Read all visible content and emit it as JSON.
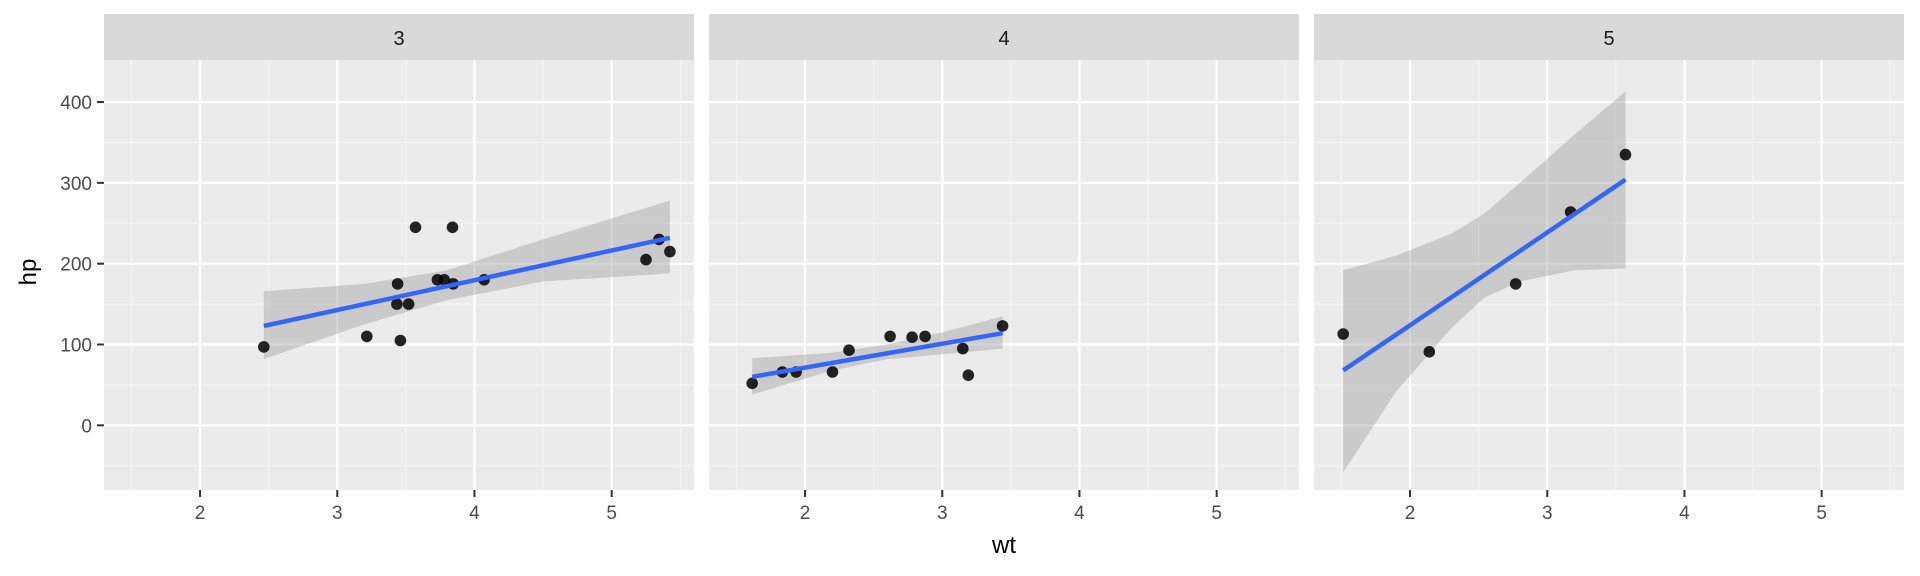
{
  "chart_data": {
    "type": "scatter",
    "facet_by": "gear",
    "xlabel": "wt",
    "ylabel": "hp",
    "x_ticks": [
      2,
      3,
      4,
      5
    ],
    "y_ticks": [
      0,
      100,
      200,
      300,
      400
    ],
    "xlim": [
      1.3,
      5.6
    ],
    "ylim": [
      -80,
      452
    ],
    "grid": true,
    "panels": [
      {
        "label": "3",
        "points": [
          {
            "x": 2.465,
            "y": 97
          },
          {
            "x": 3.215,
            "y": 110
          },
          {
            "x": 3.44,
            "y": 175
          },
          {
            "x": 3.46,
            "y": 105
          },
          {
            "x": 3.57,
            "y": 245
          },
          {
            "x": 3.435,
            "y": 150
          },
          {
            "x": 3.52,
            "y": 150
          },
          {
            "x": 3.84,
            "y": 245
          },
          {
            "x": 3.845,
            "y": 175
          },
          {
            "x": 4.07,
            "y": 180
          },
          {
            "x": 3.73,
            "y": 180
          },
          {
            "x": 3.78,
            "y": 180
          },
          {
            "x": 5.25,
            "y": 205
          },
          {
            "x": 5.345,
            "y": 230
          },
          {
            "x": 5.424,
            "y": 215
          }
        ],
        "fit": {
          "x": [
            2.465,
            5.424
          ],
          "y": [
            123,
            232
          ]
        },
        "band": {
          "x": [
            2.465,
            3.2,
            3.8,
            4.5,
            5.424
          ],
          "lower": [
            82,
            125,
            155,
            178,
            188
          ],
          "upper": [
            166,
            175,
            192,
            230,
            278
          ]
        }
      },
      {
        "label": "4",
        "points": [
          {
            "x": 1.615,
            "y": 52
          },
          {
            "x": 1.835,
            "y": 66
          },
          {
            "x": 1.935,
            "y": 66
          },
          {
            "x": 2.2,
            "y": 66
          },
          {
            "x": 2.32,
            "y": 93
          },
          {
            "x": 2.62,
            "y": 110
          },
          {
            "x": 2.78,
            "y": 109
          },
          {
            "x": 2.875,
            "y": 110
          },
          {
            "x": 3.15,
            "y": 95
          },
          {
            "x": 3.19,
            "y": 62
          },
          {
            "x": 3.44,
            "y": 123
          }
        ],
        "fit": {
          "x": [
            1.615,
            3.44
          ],
          "y": [
            60,
            114
          ]
        },
        "band": {
          "x": [
            1.615,
            2.2,
            2.6,
            3.0,
            3.44
          ],
          "lower": [
            38,
            68,
            82,
            88,
            95
          ],
          "upper": [
            83,
            90,
            100,
            115,
            135
          ]
        }
      },
      {
        "label": "5",
        "points": [
          {
            "x": 1.513,
            "y": 113
          },
          {
            "x": 2.14,
            "y": 91
          },
          {
            "x": 2.77,
            "y": 175
          },
          {
            "x": 3.17,
            "y": 264
          },
          {
            "x": 3.57,
            "y": 335
          }
        ],
        "fit": {
          "x": [
            1.513,
            3.57
          ],
          "y": [
            68,
            304
          ]
        },
        "band": {
          "x": [
            1.513,
            1.9,
            2.3,
            2.541,
            2.8,
            3.2,
            3.57
          ],
          "lower": [
            -58,
            42,
            120,
            158,
            178,
            192,
            194
          ],
          "upper": [
            192,
            210,
            237,
            262,
            300,
            360,
            413
          ]
        }
      }
    ]
  }
}
